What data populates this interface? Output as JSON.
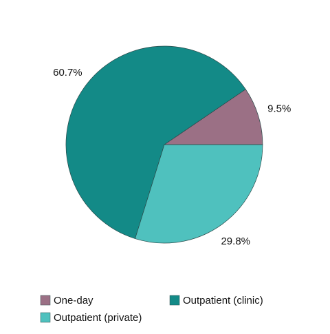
{
  "chart_data": {
    "type": "pie",
    "categories": [
      "One-day",
      "Outpatient (clinic)",
      "Outpatient (private)"
    ],
    "values": [
      9.5,
      60.7,
      29.8
    ],
    "value_labels": [
      "9.5%",
      "60.7%",
      "29.8%"
    ],
    "colors": [
      "#9b7085",
      "#138a87",
      "#4fc1be"
    ]
  }
}
